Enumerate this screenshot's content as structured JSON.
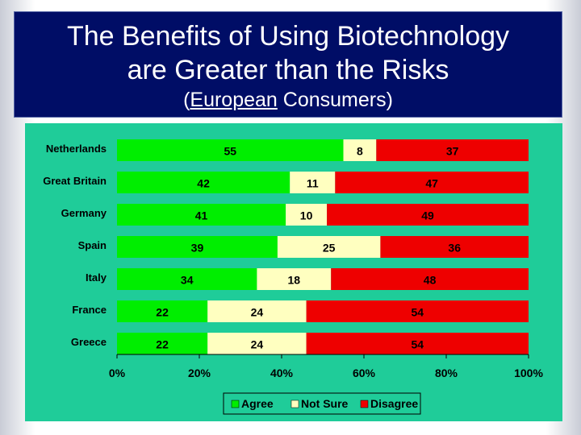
{
  "title": {
    "line1": "The Benefits of Using Biotechnology",
    "line2": "are Greater than the Risks",
    "subtitle_open": "(",
    "subtitle_underlined": "European",
    "subtitle_rest": " Consumers)"
  },
  "colors": {
    "agree": "#00ee00",
    "not_sure": "#ffffc0",
    "disagree": "#ee0000",
    "plot_background": "#1fcc99",
    "title_background": "#000d66"
  },
  "chart_data": {
    "type": "bar",
    "orientation": "horizontal",
    "stacked": "percent",
    "categories": [
      "Netherlands",
      "Great Britain",
      "Germany",
      "Spain",
      "Italy",
      "France",
      "Greece"
    ],
    "series": [
      {
        "name": "Agree",
        "values": [
          55,
          42,
          41,
          39,
          34,
          22,
          22
        ]
      },
      {
        "name": "Not Sure",
        "values": [
          8,
          11,
          10,
          25,
          18,
          24,
          24
        ]
      },
      {
        "name": "Disagree",
        "values": [
          37,
          47,
          49,
          36,
          48,
          54,
          54
        ]
      }
    ],
    "xticks": [
      "0%",
      "20%",
      "40%",
      "60%",
      "80%",
      "100%"
    ],
    "xlim": [
      0,
      100
    ],
    "legend_position": "bottom-center",
    "grid": false
  }
}
